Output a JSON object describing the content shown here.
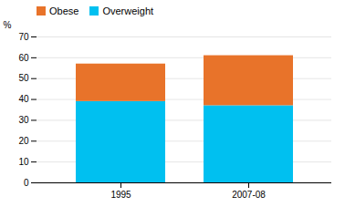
{
  "chart_data": {
    "type": "bar",
    "categories": [
      "1995",
      "2007-08"
    ],
    "series": [
      {
        "name": "Overweight",
        "color": "#00C0F0",
        "values": [
          39.0,
          37.0
        ]
      },
      {
        "name": "Obese",
        "color": "#E8732A",
        "values": [
          18.0,
          24.0
        ]
      }
    ],
    "ylabel": "%",
    "ylim": [
      0,
      70
    ],
    "yticks": [
      0,
      10,
      20,
      30,
      40,
      50,
      60,
      70
    ],
    "stacked": true,
    "grid": true,
    "legend": "upper left"
  }
}
